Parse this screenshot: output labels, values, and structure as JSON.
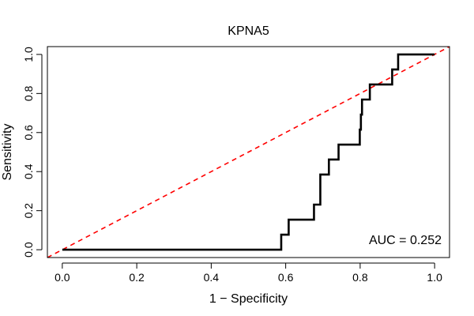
{
  "chart_data": {
    "type": "line",
    "title": "KPNA5",
    "xlabel": "1 − Specificity",
    "ylabel": "Sensitivity",
    "xlim": [
      -0.04,
      1.04
    ],
    "ylim": [
      -0.04,
      1.04
    ],
    "x_ticks": [
      0.0,
      0.2,
      0.4,
      0.6,
      0.8,
      1.0
    ],
    "x_tick_labels": [
      "0.0",
      "0.2",
      "0.4",
      "0.6",
      "0.8",
      "1.0"
    ],
    "y_ticks": [
      0.0,
      0.2,
      0.4,
      0.6,
      0.8,
      1.0
    ],
    "y_tick_labels": [
      "0.0",
      "0.2",
      "0.4",
      "0.6",
      "0.8",
      "1.0"
    ],
    "grid": false,
    "annotation": "AUC = 0.252",
    "series": [
      {
        "name": "ROC curve",
        "color": "#000000",
        "style": "solid",
        "points": [
          [
            0.0,
            0.0
          ],
          [
            0.588,
            0.0
          ],
          [
            0.588,
            0.077
          ],
          [
            0.608,
            0.077
          ],
          [
            0.608,
            0.154
          ],
          [
            0.676,
            0.154
          ],
          [
            0.676,
            0.231
          ],
          [
            0.693,
            0.231
          ],
          [
            0.693,
            0.385
          ],
          [
            0.716,
            0.385
          ],
          [
            0.716,
            0.462
          ],
          [
            0.742,
            0.462
          ],
          [
            0.742,
            0.538
          ],
          [
            0.799,
            0.538
          ],
          [
            0.799,
            0.615
          ],
          [
            0.802,
            0.615
          ],
          [
            0.802,
            0.692
          ],
          [
            0.805,
            0.692
          ],
          [
            0.805,
            0.769
          ],
          [
            0.826,
            0.769
          ],
          [
            0.826,
            0.846
          ],
          [
            0.886,
            0.846
          ],
          [
            0.886,
            0.923
          ],
          [
            0.902,
            0.923
          ],
          [
            0.902,
            1.0
          ],
          [
            1.0,
            1.0
          ]
        ]
      },
      {
        "name": "Reference diagonal",
        "color": "#ff0000",
        "style": "dashed",
        "points": [
          [
            -0.04,
            -0.04
          ],
          [
            1.04,
            1.04
          ]
        ]
      }
    ]
  }
}
